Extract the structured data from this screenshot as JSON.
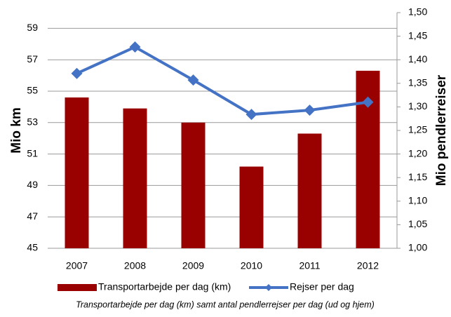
{
  "chart_data": {
    "type": "bar",
    "categories": [
      "2007",
      "2008",
      "2009",
      "2010",
      "2011",
      "2012"
    ],
    "series": [
      {
        "name": "Transportarbejde per dag (km)",
        "type": "bar",
        "color": "#990000",
        "values": [
          54.6,
          53.9,
          53.0,
          50.2,
          52.3,
          56.3
        ]
      },
      {
        "name": "Rejser per dag",
        "type": "line",
        "axis": "y2",
        "color": "#4472c4",
        "values": [
          1.371,
          1.427,
          1.357,
          1.284,
          1.293,
          1.31
        ]
      }
    ],
    "ylabel": "Mio km",
    "y2label": "Mio pendlerreiser",
    "ylim": [
      45,
      60
    ],
    "yticks": [
      45,
      47,
      49,
      51,
      53,
      55,
      57,
      59
    ],
    "y2lim": [
      1.0,
      1.5
    ],
    "y2ticks": [
      {
        "value": 1.0,
        "label": "1,00"
      },
      {
        "value": 1.05,
        "label": "1,05"
      },
      {
        "value": 1.1,
        "label": "1,10"
      },
      {
        "value": 1.15,
        "label": "1,15"
      },
      {
        "value": 1.2,
        "label": "1,20"
      },
      {
        "value": 1.25,
        "label": "1,25"
      },
      {
        "value": 1.3,
        "label": "1,30"
      },
      {
        "value": 1.35,
        "label": "1,35"
      },
      {
        "value": 1.4,
        "label": "1,40"
      },
      {
        "value": 1.45,
        "label": "1,45"
      },
      {
        "value": 1.5,
        "label": "1,50"
      }
    ],
    "grid": true,
    "caption": "Transportarbejde per dag (km) samt antal pendlerrejser per dag (ud og hjem)"
  }
}
